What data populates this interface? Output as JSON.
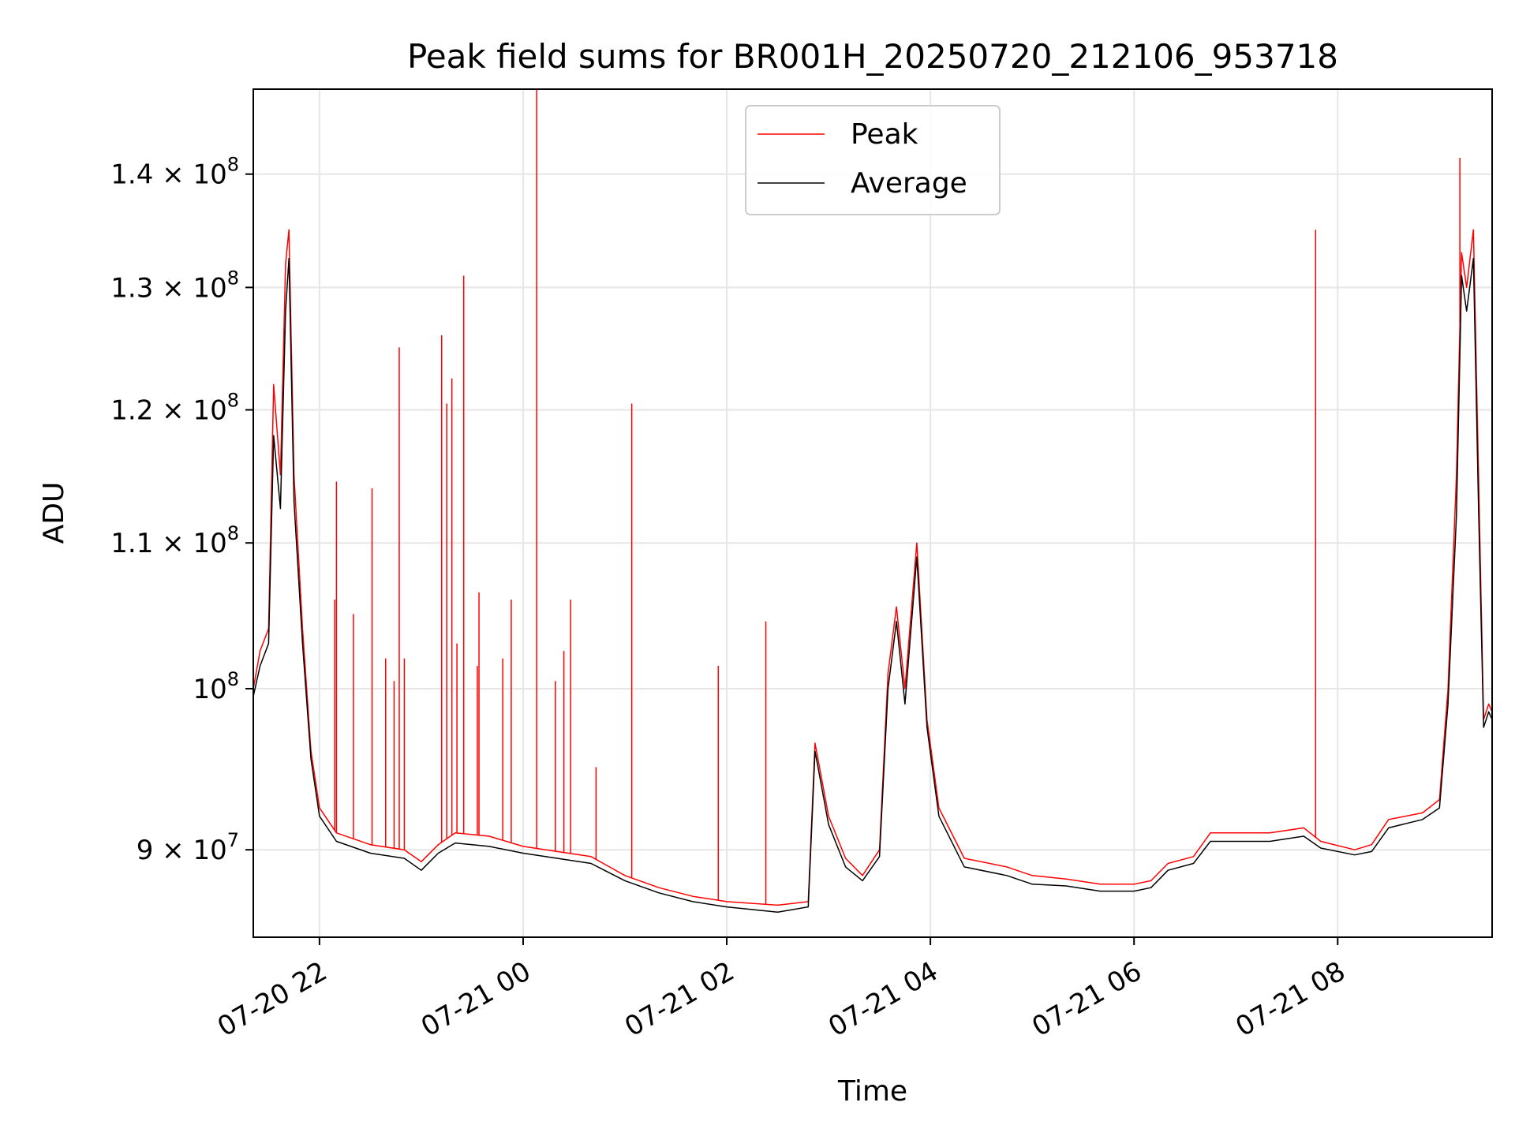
{
  "chart_data": {
    "type": "line",
    "title": "Peak field sums for BR001H_20250720_212106_953718",
    "xlabel": "Time",
    "ylabel": "ADU",
    "y_scale": "log",
    "x_range": [
      "2025-07-20 21:21",
      "2025-07-21 09:31"
    ],
    "ylim": [
      85000000,
      148000000
    ],
    "grid": true,
    "legend_position": "top-center",
    "x_ticks": [
      {
        "value": "2025-07-20 22:00",
        "label": "07-20 22"
      },
      {
        "value": "2025-07-21 00:00",
        "label": "07-21 00"
      },
      {
        "value": "2025-07-21 02:00",
        "label": "07-21 02"
      },
      {
        "value": "2025-07-21 04:00",
        "label": "07-21 04"
      },
      {
        "value": "2025-07-21 06:00",
        "label": "07-21 06"
      },
      {
        "value": "2025-07-21 08:00",
        "label": "07-21 08"
      }
    ],
    "y_ticks": [
      {
        "value": 90000000,
        "label": "9 × 10",
        "exp": "7"
      },
      {
        "value": 100000000,
        "label": "10",
        "exp": "8"
      },
      {
        "value": 110000000,
        "label": "1.1 × 10",
        "exp": "8"
      },
      {
        "value": 120000000,
        "label": "1.2 × 10",
        "exp": "8"
      },
      {
        "value": 130000000,
        "label": "1.3 × 10",
        "exp": "8"
      },
      {
        "value": 140000000,
        "label": "1.4 × 10",
        "exp": "8"
      }
    ],
    "series": [
      {
        "name": "Peak",
        "color": "#ff0000",
        "points": [
          [
            "2025-07-20 21:21",
            100000000
          ],
          [
            "2025-07-20 21:25",
            102500000
          ],
          [
            "2025-07-20 21:30",
            104000000
          ],
          [
            "2025-07-20 21:33",
            122000000
          ],
          [
            "2025-07-20 21:37",
            115000000
          ],
          [
            "2025-07-20 21:40",
            132000000
          ],
          [
            "2025-07-20 21:42",
            135000000
          ],
          [
            "2025-07-20 21:45",
            115000000
          ],
          [
            "2025-07-20 21:50",
            104000000
          ],
          [
            "2025-07-20 21:55",
            96000000
          ],
          [
            "2025-07-20 22:00",
            92500000
          ],
          [
            "2025-07-20 22:10",
            91000000
          ],
          [
            "2025-07-20 22:30",
            90300000
          ],
          [
            "2025-07-20 22:50",
            90000000
          ],
          [
            "2025-07-20 23:00",
            89300000
          ],
          [
            "2025-07-20 23:10",
            90300000
          ],
          [
            "2025-07-20 23:20",
            91000000
          ],
          [
            "2025-07-20 23:40",
            90800000
          ],
          [
            "2025-07-21 00:00",
            90200000
          ],
          [
            "2025-07-21 00:20",
            89900000
          ],
          [
            "2025-07-21 00:40",
            89600000
          ],
          [
            "2025-07-21 01:00",
            88500000
          ],
          [
            "2025-07-21 01:20",
            87800000
          ],
          [
            "2025-07-21 01:40",
            87300000
          ],
          [
            "2025-07-21 02:00",
            87000000
          ],
          [
            "2025-07-21 02:30",
            86800000
          ],
          [
            "2025-07-21 02:48",
            87000000
          ],
          [
            "2025-07-21 02:52",
            96500000
          ],
          [
            "2025-07-21 03:00",
            92000000
          ],
          [
            "2025-07-21 03:10",
            89500000
          ],
          [
            "2025-07-21 03:20",
            88500000
          ],
          [
            "2025-07-21 03:30",
            90000000
          ],
          [
            "2025-07-21 03:35",
            101000000
          ],
          [
            "2025-07-21 03:40",
            105500000
          ],
          [
            "2025-07-21 03:45",
            100000000
          ],
          [
            "2025-07-21 03:52",
            110000000
          ],
          [
            "2025-07-21 03:58",
            98000000
          ],
          [
            "2025-07-21 04:05",
            92500000
          ],
          [
            "2025-07-21 04:20",
            89500000
          ],
          [
            "2025-07-21 04:45",
            89000000
          ],
          [
            "2025-07-21 05:00",
            88500000
          ],
          [
            "2025-07-21 05:20",
            88300000
          ],
          [
            "2025-07-21 05:40",
            88000000
          ],
          [
            "2025-07-21 06:00",
            88000000
          ],
          [
            "2025-07-21 06:10",
            88200000
          ],
          [
            "2025-07-21 06:20",
            89200000
          ],
          [
            "2025-07-21 06:35",
            89600000
          ],
          [
            "2025-07-21 06:45",
            91000000
          ],
          [
            "2025-07-21 07:00",
            91000000
          ],
          [
            "2025-07-21 07:20",
            91000000
          ],
          [
            "2025-07-21 07:40",
            91300000
          ],
          [
            "2025-07-21 07:50",
            90500000
          ],
          [
            "2025-07-21 08:10",
            90000000
          ],
          [
            "2025-07-21 08:20",
            90300000
          ],
          [
            "2025-07-21 08:30",
            91800000
          ],
          [
            "2025-07-21 08:50",
            92200000
          ],
          [
            "2025-07-21 09:00",
            93000000
          ],
          [
            "2025-07-21 09:05",
            100000000
          ],
          [
            "2025-07-21 09:10",
            115000000
          ],
          [
            "2025-07-21 09:13",
            133000000
          ],
          [
            "2025-07-21 09:16",
            130000000
          ],
          [
            "2025-07-21 09:20",
            135000000
          ],
          [
            "2025-07-21 09:23",
            115000000
          ],
          [
            "2025-07-21 09:26",
            98000000
          ],
          [
            "2025-07-21 09:29",
            99000000
          ],
          [
            "2025-07-21 09:31",
            98500000
          ]
        ]
      },
      {
        "name": "Average",
        "color": "#000000",
        "points": [
          [
            "2025-07-20 21:21",
            99500000
          ],
          [
            "2025-07-20 21:25",
            101500000
          ],
          [
            "2025-07-20 21:30",
            103000000
          ],
          [
            "2025-07-20 21:33",
            118000000
          ],
          [
            "2025-07-20 21:37",
            112500000
          ],
          [
            "2025-07-20 21:40",
            128000000
          ],
          [
            "2025-07-20 21:42",
            132500000
          ],
          [
            "2025-07-20 21:45",
            113000000
          ],
          [
            "2025-07-20 21:50",
            103000000
          ],
          [
            "2025-07-20 21:55",
            95500000
          ],
          [
            "2025-07-20 22:00",
            92000000
          ],
          [
            "2025-07-20 22:10",
            90500000
          ],
          [
            "2025-07-20 22:30",
            89800000
          ],
          [
            "2025-07-20 22:50",
            89500000
          ],
          [
            "2025-07-20 23:00",
            88800000
          ],
          [
            "2025-07-20 23:10",
            89800000
          ],
          [
            "2025-07-20 23:20",
            90400000
          ],
          [
            "2025-07-20 23:40",
            90200000
          ],
          [
            "2025-07-21 00:00",
            89800000
          ],
          [
            "2025-07-21 00:20",
            89500000
          ],
          [
            "2025-07-21 00:40",
            89200000
          ],
          [
            "2025-07-21 01:00",
            88200000
          ],
          [
            "2025-07-21 01:20",
            87500000
          ],
          [
            "2025-07-21 01:40",
            87000000
          ],
          [
            "2025-07-21 02:00",
            86700000
          ],
          [
            "2025-07-21 02:30",
            86400000
          ],
          [
            "2025-07-21 02:48",
            86700000
          ],
          [
            "2025-07-21 02:52",
            96000000
          ],
          [
            "2025-07-21 03:00",
            91500000
          ],
          [
            "2025-07-21 03:10",
            89000000
          ],
          [
            "2025-07-21 03:20",
            88200000
          ],
          [
            "2025-07-21 03:30",
            89600000
          ],
          [
            "2025-07-21 03:35",
            100000000
          ],
          [
            "2025-07-21 03:40",
            104500000
          ],
          [
            "2025-07-21 03:45",
            99000000
          ],
          [
            "2025-07-21 03:52",
            109000000
          ],
          [
            "2025-07-21 03:58",
            97500000
          ],
          [
            "2025-07-21 04:05",
            92000000
          ],
          [
            "2025-07-21 04:20",
            89000000
          ],
          [
            "2025-07-21 04:45",
            88500000
          ],
          [
            "2025-07-21 05:00",
            88000000
          ],
          [
            "2025-07-21 05:20",
            87900000
          ],
          [
            "2025-07-21 05:40",
            87600000
          ],
          [
            "2025-07-21 06:00",
            87600000
          ],
          [
            "2025-07-21 06:10",
            87800000
          ],
          [
            "2025-07-21 06:20",
            88800000
          ],
          [
            "2025-07-21 06:35",
            89200000
          ],
          [
            "2025-07-21 06:45",
            90500000
          ],
          [
            "2025-07-21 07:00",
            90500000
          ],
          [
            "2025-07-21 07:20",
            90500000
          ],
          [
            "2025-07-21 07:40",
            90800000
          ],
          [
            "2025-07-21 07:50",
            90100000
          ],
          [
            "2025-07-21 08:10",
            89700000
          ],
          [
            "2025-07-21 08:20",
            89900000
          ],
          [
            "2025-07-21 08:30",
            91300000
          ],
          [
            "2025-07-21 08:50",
            91800000
          ],
          [
            "2025-07-21 09:00",
            92500000
          ],
          [
            "2025-07-21 09:05",
            99000000
          ],
          [
            "2025-07-21 09:10",
            112000000
          ],
          [
            "2025-07-21 09:13",
            131000000
          ],
          [
            "2025-07-21 09:16",
            128000000
          ],
          [
            "2025-07-21 09:20",
            132500000
          ],
          [
            "2025-07-21 09:23",
            112500000
          ],
          [
            "2025-07-21 09:26",
            97500000
          ],
          [
            "2025-07-21 09:29",
            98500000
          ],
          [
            "2025-07-21 09:31",
            98000000
          ]
        ]
      }
    ],
    "peak_spikes": [
      [
        "2025-07-20 22:09",
        106000000
      ],
      [
        "2025-07-20 22:10",
        114500000
      ],
      [
        "2025-07-20 22:20",
        105000000
      ],
      [
        "2025-07-20 22:31",
        114000000
      ],
      [
        "2025-07-20 22:39",
        102000000
      ],
      [
        "2025-07-20 22:44",
        100500000
      ],
      [
        "2025-07-20 22:47",
        125000000
      ],
      [
        "2025-07-20 22:50",
        102000000
      ],
      [
        "2025-07-20 23:12",
        126000000
      ],
      [
        "2025-07-20 23:15",
        120500000
      ],
      [
        "2025-07-20 23:18",
        122500000
      ],
      [
        "2025-07-20 23:21",
        103000000
      ],
      [
        "2025-07-20 23:25",
        131000000
      ],
      [
        "2025-07-20 23:33",
        101500000
      ],
      [
        "2025-07-20 23:34",
        106500000
      ],
      [
        "2025-07-20 23:48",
        102000000
      ],
      [
        "2025-07-20 23:53",
        106000000
      ],
      [
        "2025-07-21 00:08",
        148000000
      ],
      [
        "2025-07-21 00:19",
        100500000
      ],
      [
        "2025-07-21 00:24",
        102500000
      ],
      [
        "2025-07-21 00:28",
        106000000
      ],
      [
        "2025-07-21 00:43",
        95000000
      ],
      [
        "2025-07-21 01:04",
        120500000
      ],
      [
        "2025-07-21 01:55",
        101500000
      ],
      [
        "2025-07-21 02:23",
        104500000
      ],
      [
        "2025-07-21 07:47",
        135000000
      ],
      [
        "2025-07-21 09:12",
        141500000
      ]
    ],
    "legend": [
      "Peak",
      "Average"
    ]
  }
}
